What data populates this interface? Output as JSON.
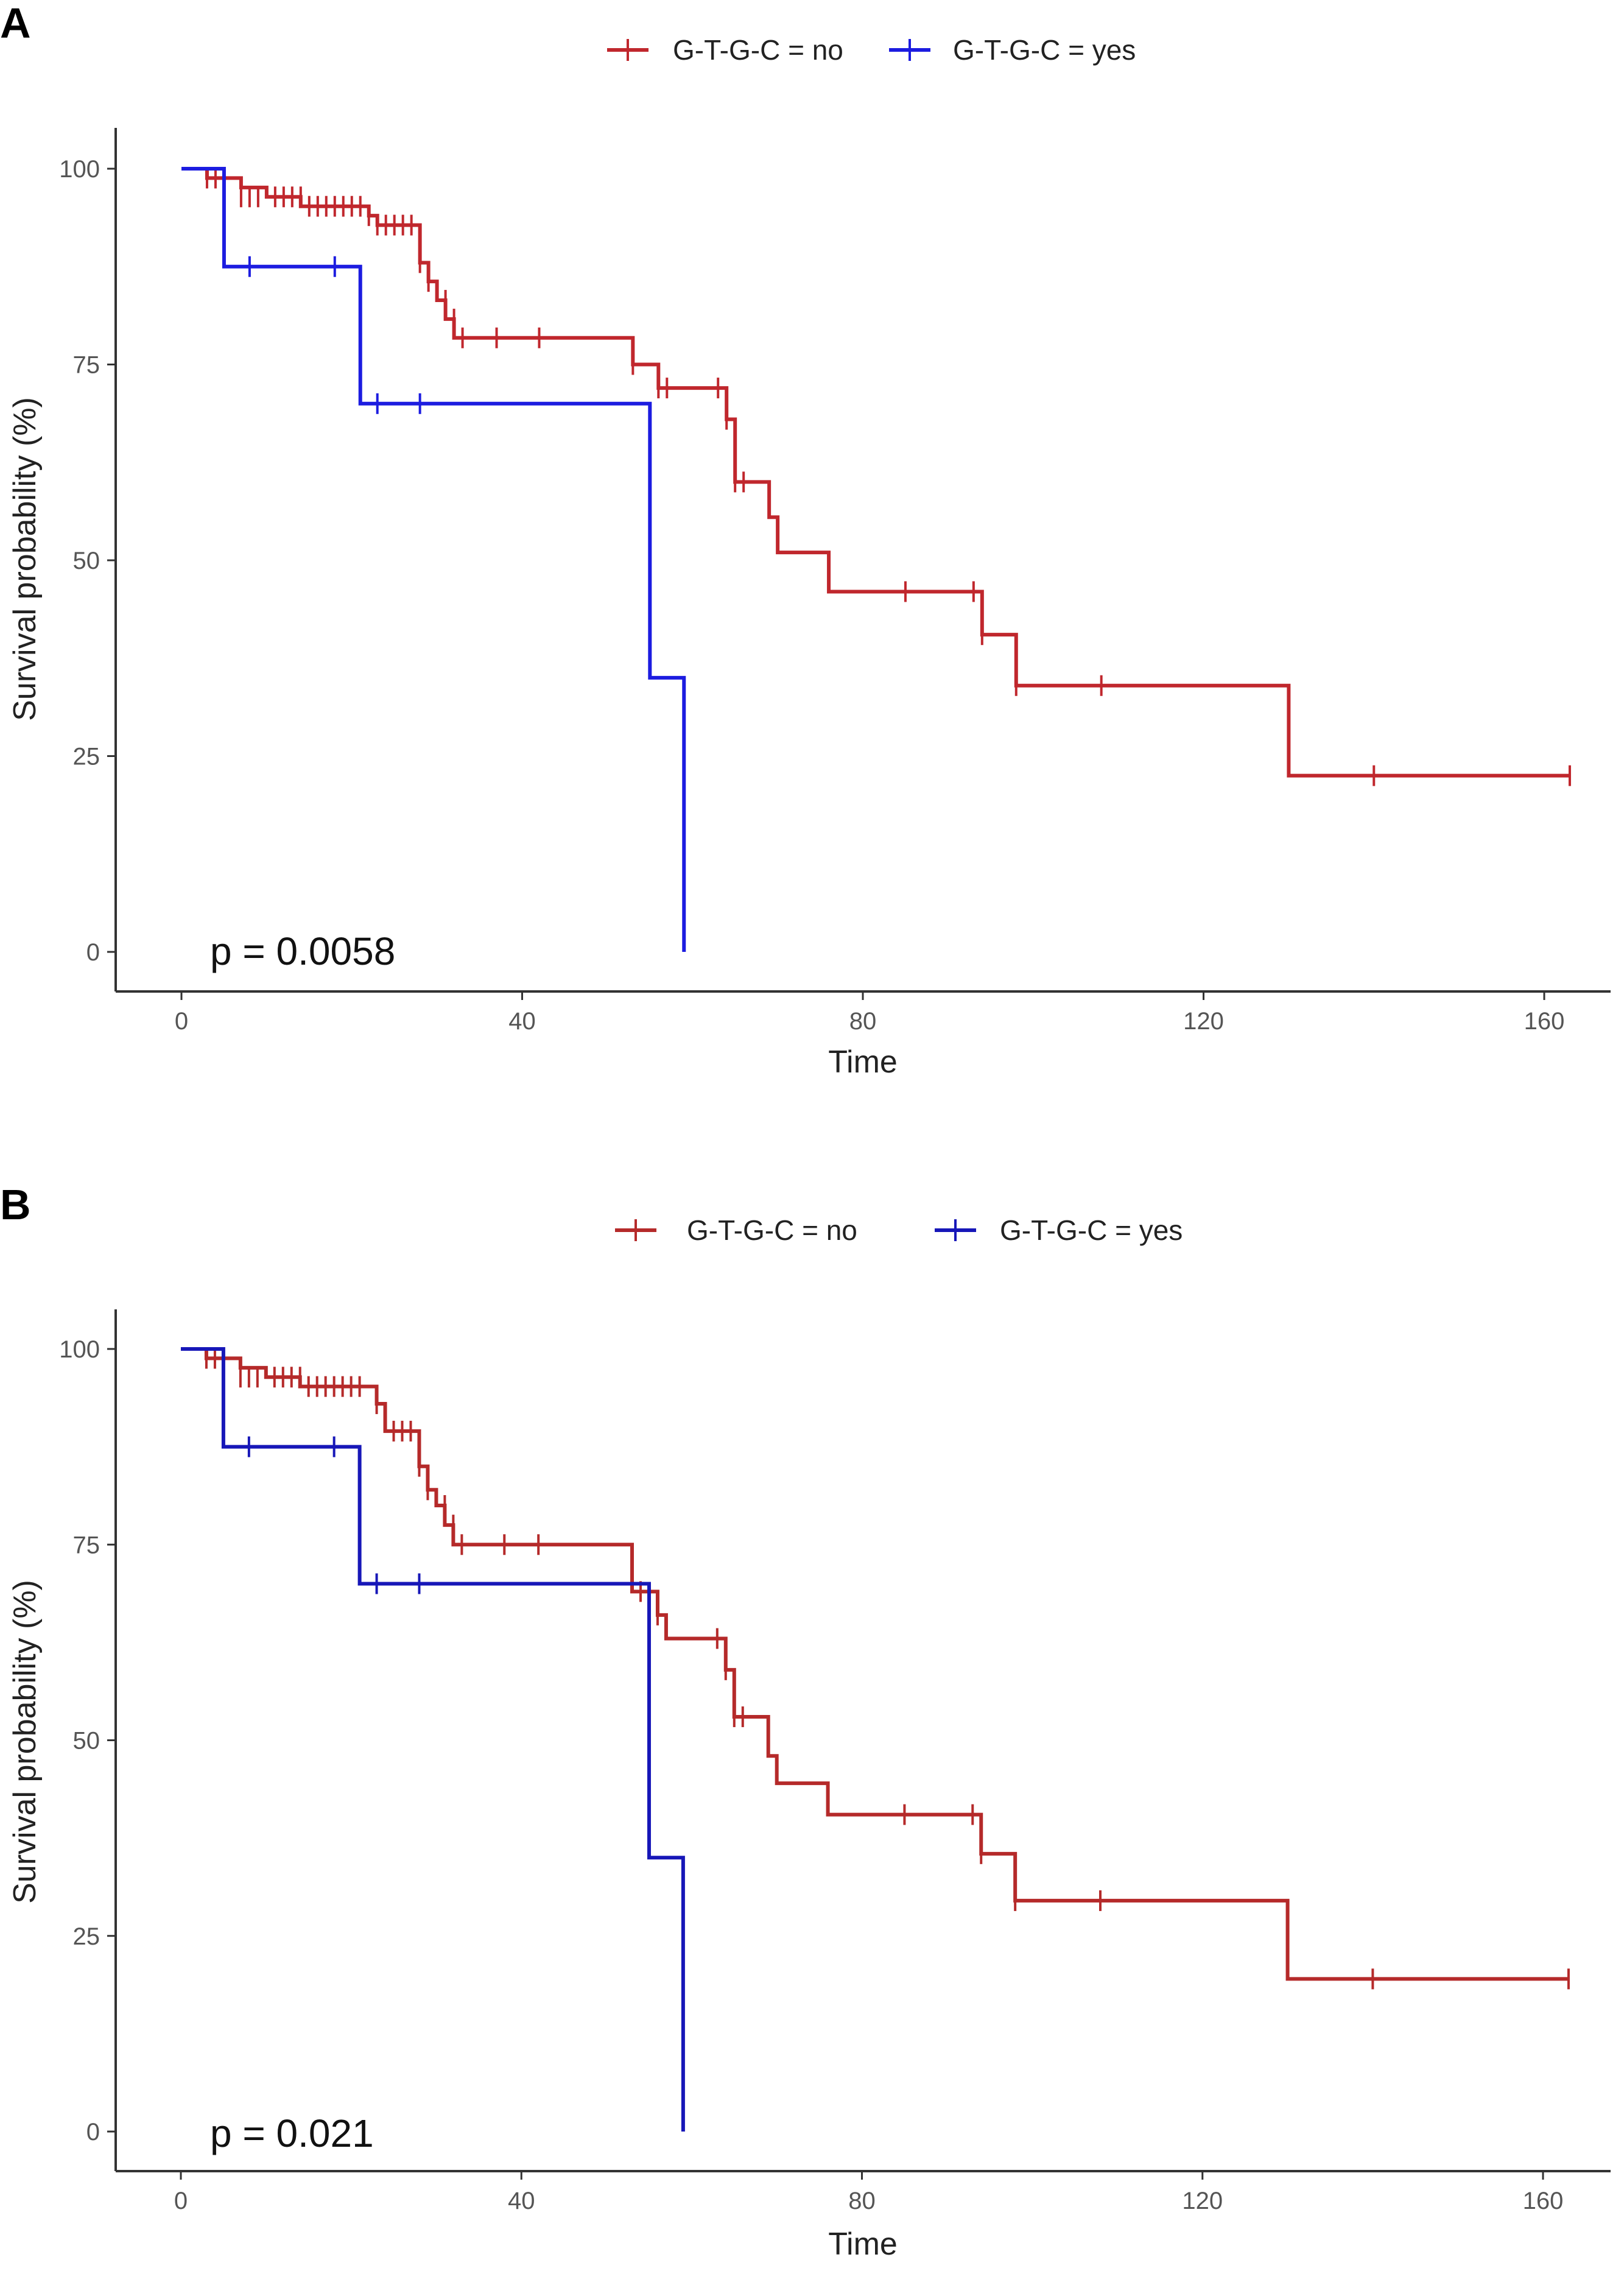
{
  "chart_data": [
    {
      "type": "line",
      "subtype": "kaplan-meier",
      "panel_label": "A",
      "xlabel": "Time",
      "ylabel": "Survival probability (%)",
      "xlim": [
        0,
        165
      ],
      "ylim": [
        0,
        100
      ],
      "xticks": [
        0,
        40,
        80,
        120,
        160
      ],
      "yticks": [
        0,
        25,
        50,
        75,
        100
      ],
      "grid": false,
      "legend_position": "top",
      "annotation": "p = 0.0058",
      "series": [
        {
          "name": "G-T-G-C = no",
          "color": "#c0272d",
          "steps": [
            [
              0,
              100
            ],
            [
              3,
              98.8
            ],
            [
              7,
              97.6
            ],
            [
              10,
              96.4
            ],
            [
              14,
              95.2
            ],
            [
              22,
              94.0
            ],
            [
              23,
              92.8
            ],
            [
              28,
              88.0
            ],
            [
              29,
              85.6
            ],
            [
              30,
              83.2
            ],
            [
              31,
              80.8
            ],
            [
              32,
              78.4
            ],
            [
              53,
              75.0
            ],
            [
              56,
              72.0
            ],
            [
              64,
              68.0
            ],
            [
              65,
              60.0
            ],
            [
              69,
              55.5
            ],
            [
              70,
              51.0
            ],
            [
              76,
              46.0
            ],
            [
              94,
              40.5
            ],
            [
              98,
              34.0
            ],
            [
              130,
              22.5
            ],
            [
              163,
              22.5
            ]
          ],
          "censored": [
            [
              3,
              98.8
            ],
            [
              4,
              98.8
            ],
            [
              7,
              96.4
            ],
            [
              8,
              96.4
            ],
            [
              9,
              96.4
            ],
            [
              11,
              96.4
            ],
            [
              12,
              96.4
            ],
            [
              13,
              96.4
            ],
            [
              14,
              96.4
            ],
            [
              15,
              95.2
            ],
            [
              16,
              95.2
            ],
            [
              17,
              95.2
            ],
            [
              18,
              95.2
            ],
            [
              19,
              95.2
            ],
            [
              20,
              95.2
            ],
            [
              21,
              95.2
            ],
            [
              22,
              94.0
            ],
            [
              23,
              92.8
            ],
            [
              24,
              92.8
            ],
            [
              25,
              92.8
            ],
            [
              26,
              92.8
            ],
            [
              27,
              92.8
            ],
            [
              28,
              88.0
            ],
            [
              29,
              85.6
            ],
            [
              31,
              83.2
            ],
            [
              32,
              80.8
            ],
            [
              33,
              78.4
            ],
            [
              37,
              78.4
            ],
            [
              42,
              78.4
            ],
            [
              53,
              75.0
            ],
            [
              56,
              72.0
            ],
            [
              57,
              72.0
            ],
            [
              63,
              72.0
            ],
            [
              64,
              68.0
            ],
            [
              65,
              60.0
            ],
            [
              66,
              60.0
            ],
            [
              85,
              46.0
            ],
            [
              93,
              46.0
            ],
            [
              94,
              40.5
            ],
            [
              98,
              34.0
            ],
            [
              108,
              34.0
            ],
            [
              140,
              22.5
            ],
            [
              163,
              22.5
            ]
          ]
        },
        {
          "name": "G-T-G-C = yes",
          "color": "#1c1ce0",
          "steps": [
            [
              0,
              100
            ],
            [
              5,
              87.5
            ],
            [
              21,
              70.0
            ],
            [
              55,
              35.0
            ],
            [
              59,
              0
            ]
          ],
          "censored": [
            [
              8,
              87.5
            ],
            [
              18,
              87.5
            ],
            [
              23,
              70.0
            ],
            [
              28,
              70.0
            ]
          ]
        }
      ]
    },
    {
      "type": "line",
      "subtype": "kaplan-meier",
      "panel_label": "B",
      "xlabel": "Time",
      "ylabel": "Survival probability (%)",
      "xlim": [
        0,
        165
      ],
      "ylim": [
        0,
        100
      ],
      "xticks": [
        0,
        40,
        80,
        120,
        160
      ],
      "yticks": [
        0,
        25,
        50,
        75,
        100
      ],
      "grid": false,
      "legend_position": "top",
      "annotation": "p = 0.021",
      "series": [
        {
          "name": "G-T-G-C = no",
          "color": "#b52a2a",
          "steps": [
            [
              0,
              100
            ],
            [
              3,
              98.8
            ],
            [
              7,
              97.6
            ],
            [
              10,
              96.4
            ],
            [
              14,
              95.2
            ],
            [
              23,
              93.0
            ],
            [
              24,
              89.5
            ],
            [
              28,
              85.0
            ],
            [
              29,
              82.0
            ],
            [
              30,
              80.0
            ],
            [
              31,
              77.5
            ],
            [
              32,
              75.0
            ],
            [
              53,
              69.0
            ],
            [
              56,
              66.0
            ],
            [
              57,
              63.0
            ],
            [
              64,
              59.0
            ],
            [
              65,
              53.0
            ],
            [
              69,
              48.0
            ],
            [
              70,
              44.5
            ],
            [
              76,
              40.5
            ],
            [
              94,
              35.5
            ],
            [
              98,
              29.5
            ],
            [
              130,
              19.5
            ],
            [
              163,
              19.5
            ]
          ],
          "censored": [
            [
              3,
              98.8
            ],
            [
              4,
              98.8
            ],
            [
              7,
              96.4
            ],
            [
              8,
              96.4
            ],
            [
              9,
              96.4
            ],
            [
              11,
              96.4
            ],
            [
              12,
              96.4
            ],
            [
              13,
              96.4
            ],
            [
              14,
              96.4
            ],
            [
              15,
              95.2
            ],
            [
              16,
              95.2
            ],
            [
              17,
              95.2
            ],
            [
              18,
              95.2
            ],
            [
              19,
              95.2
            ],
            [
              20,
              95.2
            ],
            [
              21,
              95.2
            ],
            [
              23,
              93.0
            ],
            [
              25,
              89.5
            ],
            [
              26,
              89.5
            ],
            [
              27,
              89.5
            ],
            [
              28,
              85.0
            ],
            [
              29,
              82.0
            ],
            [
              31,
              80.0
            ],
            [
              32,
              77.5
            ],
            [
              33,
              75.0
            ],
            [
              38,
              75.0
            ],
            [
              42,
              75.0
            ],
            [
              54,
              69.0
            ],
            [
              56,
              66.0
            ],
            [
              63,
              63.0
            ],
            [
              64,
              59.0
            ],
            [
              65,
              53.0
            ],
            [
              66,
              53.0
            ],
            [
              85,
              40.5
            ],
            [
              93,
              40.5
            ],
            [
              94,
              35.5
            ],
            [
              98,
              29.5
            ],
            [
              108,
              29.5
            ],
            [
              140,
              19.5
            ],
            [
              163,
              19.5
            ]
          ]
        },
        {
          "name": "G-T-G-C = yes",
          "color": "#1717b8",
          "steps": [
            [
              0,
              100
            ],
            [
              5,
              87.5
            ],
            [
              21,
              70.0
            ],
            [
              55,
              35.0
            ],
            [
              59,
              0
            ]
          ],
          "censored": [
            [
              8,
              87.5
            ],
            [
              18,
              87.5
            ],
            [
              23,
              70.0
            ],
            [
              28,
              70.0
            ]
          ]
        }
      ]
    }
  ]
}
